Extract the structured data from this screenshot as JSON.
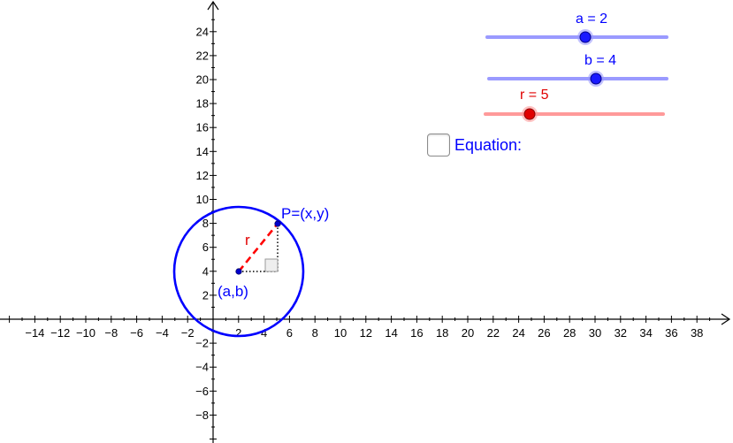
{
  "sliders": [
    {
      "id": "a",
      "label": "a = 2",
      "value": 2,
      "color": "#1a1aff",
      "track_color": "#9a9aff"
    },
    {
      "id": "b",
      "label": "b = 4",
      "value": 4,
      "color": "#1a1aff",
      "track_color": "#9a9aff"
    },
    {
      "id": "r",
      "label": "r = 5",
      "value": 5,
      "color": "#e00000",
      "track_color": "#ff9a9a"
    }
  ],
  "equation": {
    "label": "Equation:",
    "checked": false,
    "color": "#0000ff"
  },
  "labels": {
    "point_p": "P=(x,y)",
    "center": "(a,b)",
    "radius": "r"
  },
  "axes": {
    "x_ticks": [
      "−14",
      "−12",
      "−10",
      "−8",
      "−6",
      "−4",
      "−2",
      "2",
      "4",
      "6",
      "8",
      "10",
      "12",
      "14",
      "16",
      "18",
      "20",
      "22",
      "24",
      "26",
      "28",
      "30",
      "32",
      "34",
      "36",
      "38"
    ],
    "y_ticks": [
      "24",
      "22",
      "20",
      "18",
      "16",
      "14",
      "12",
      "10",
      "8",
      "6",
      "4",
      "2",
      "−2",
      "−4",
      "−6",
      "−8"
    ]
  },
  "geometry": {
    "center": [
      2,
      4
    ],
    "radius": 5,
    "point": [
      5,
      8
    ]
  },
  "colors": {
    "circle": "#0000ff",
    "radius_segment": "#ff0000",
    "point_label": "#0000ff",
    "radius_label": "#e00000",
    "axes": "#000000"
  }
}
